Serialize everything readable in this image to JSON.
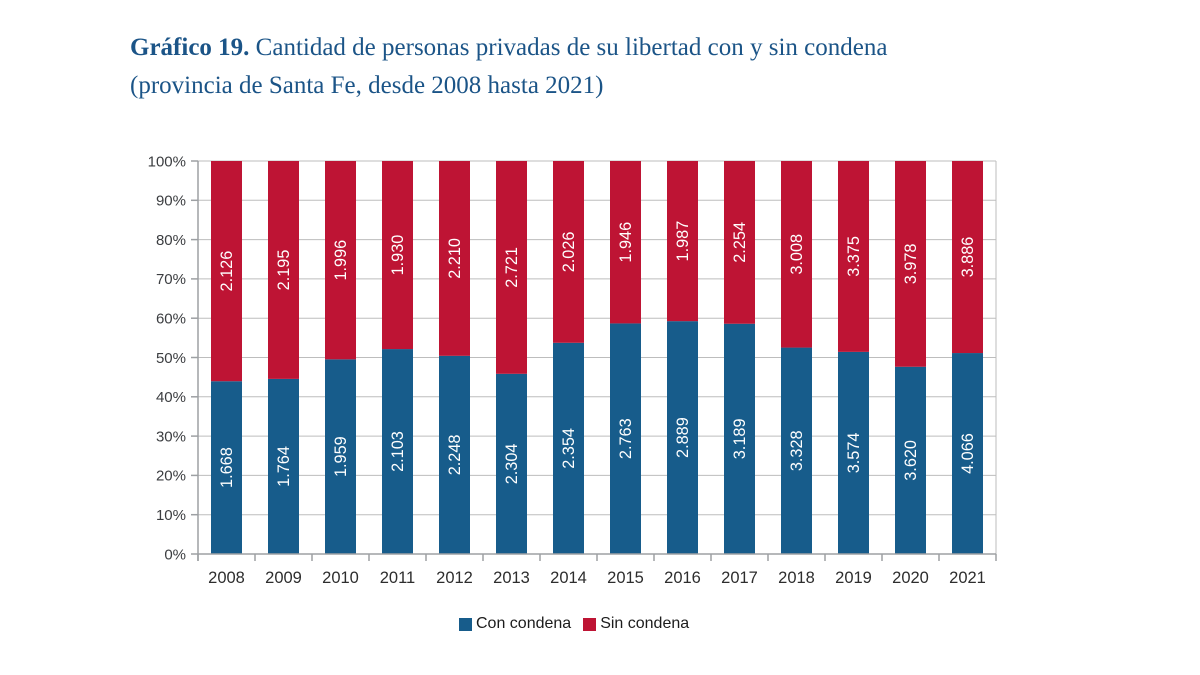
{
  "title": {
    "label": "Gráfico 19.",
    "text": " Cantidad de personas privadas de su libertad con y sin condena (provincia de Santa Fe, desde 2008 hasta 2021)"
  },
  "chart_data": {
    "type": "bar",
    "stacked": true,
    "percent_axis": true,
    "title": "Gráfico 19. Cantidad de personas privadas de su libertad con y sin condena (provincia de Santa Fe, desde 2008 hasta 2021)",
    "categories": [
      "2008",
      "2009",
      "2010",
      "2011",
      "2012",
      "2013",
      "2014",
      "2015",
      "2016",
      "2017",
      "2018",
      "2019",
      "2020",
      "2021"
    ],
    "series": [
      {
        "name": "Con condena",
        "color": "#175c8b",
        "values": [
          1668,
          1764,
          1959,
          2103,
          2248,
          2304,
          2354,
          2763,
          2889,
          3189,
          3328,
          3574,
          3620,
          4066
        ]
      },
      {
        "name": "Sin condena",
        "color": "#be1434",
        "values": [
          2126,
          2195,
          1996,
          1930,
          2210,
          2721,
          2026,
          1946,
          1987,
          2254,
          3008,
          3375,
          3978,
          3886
        ]
      }
    ],
    "value_labels": {
      "con_condena": [
        "1.668",
        "1.764",
        "1.959",
        "2.103",
        "2.248",
        "2.304",
        "2.354",
        "2.763",
        "2.889",
        "3.189",
        "3.328",
        "3.574",
        "3.620",
        "4.066"
      ],
      "sin_condena": [
        "2.126",
        "2.195",
        "1.996",
        "1.930",
        "2.210",
        "2.721",
        "2.026",
        "1.946",
        "1.987",
        "2.254",
        "3.008",
        "3.375",
        "3.978",
        "3.886"
      ]
    },
    "yticks": [
      "0%",
      "10%",
      "20%",
      "30%",
      "40%",
      "50%",
      "60%",
      "70%",
      "80%",
      "90%",
      "100%"
    ],
    "ylim": [
      0,
      100
    ],
    "grid": true,
    "legend_position": "bottom"
  },
  "colors": {
    "title": "#1b5487",
    "grid": "#bdbdbd",
    "axis": "#9da0a3",
    "tick_label": "#3b3d40",
    "year_label": "#2d2d2d",
    "bar_label": "#ffffff"
  }
}
